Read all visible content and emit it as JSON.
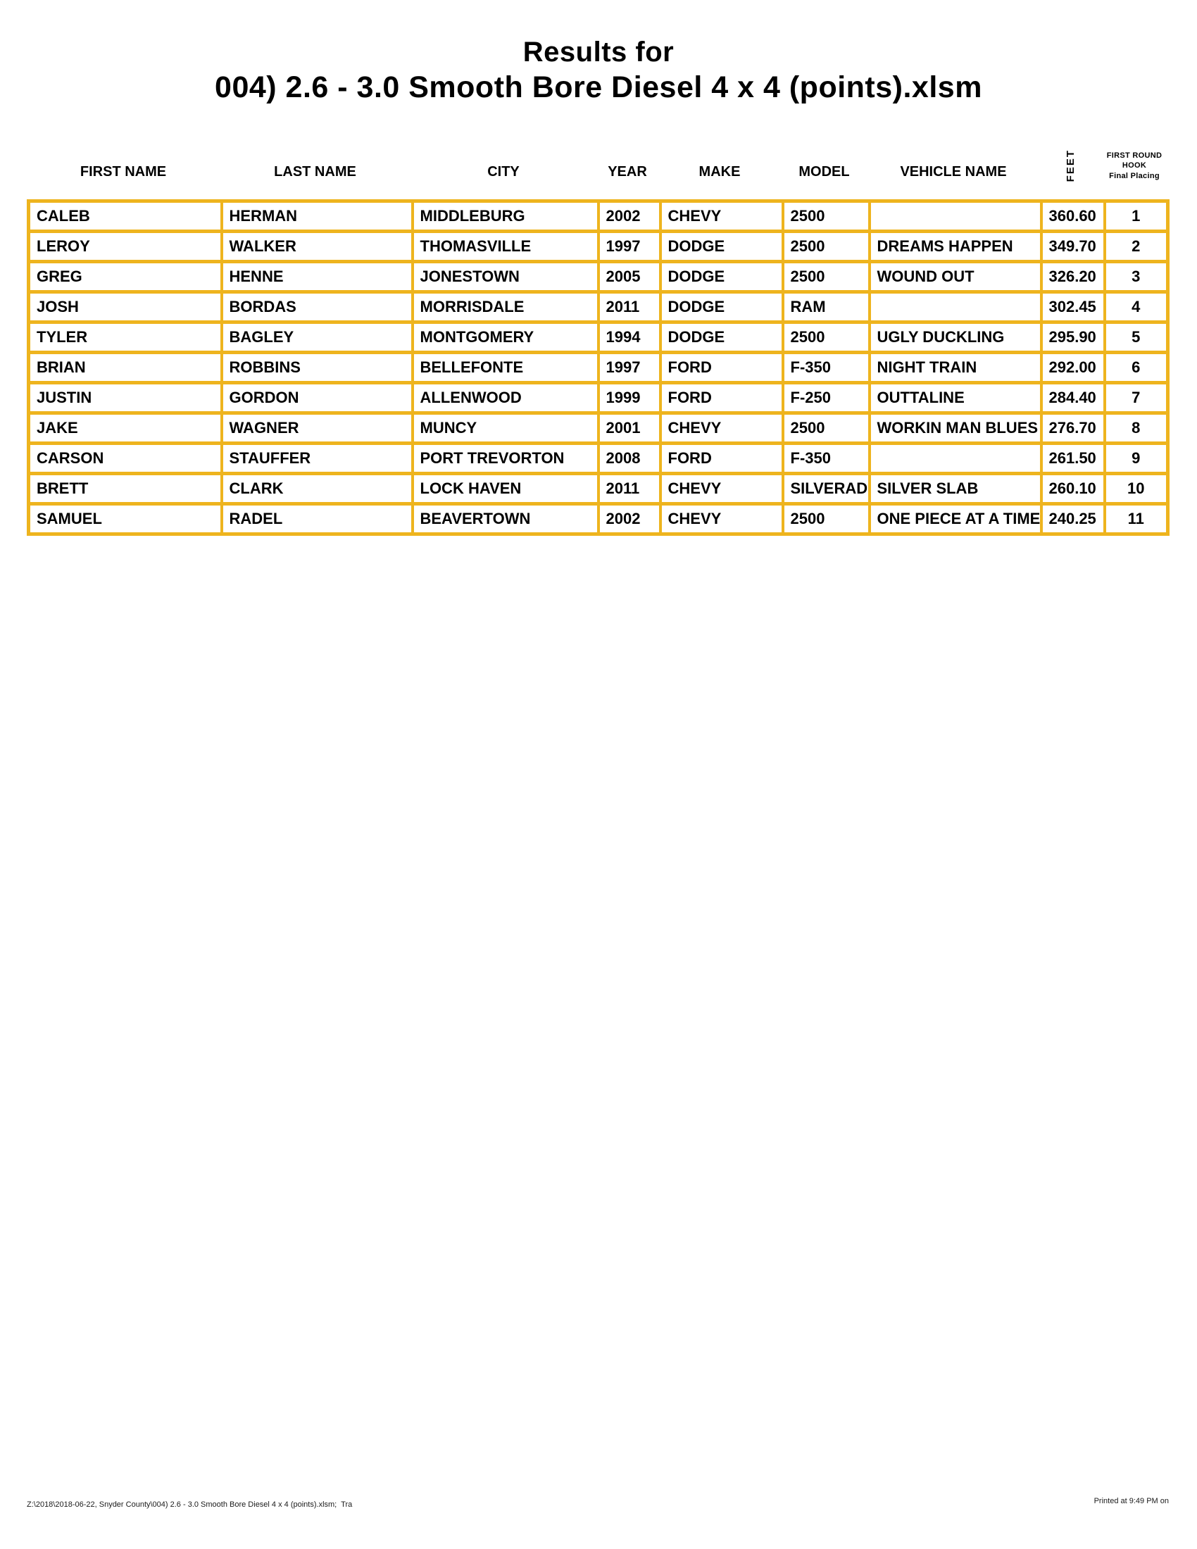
{
  "title": {
    "line1": "Results for",
    "line2": "004) 2.6 - 3.0 Smooth Bore Diesel 4 x 4 (points).xlsm"
  },
  "colors": {
    "grid": "#EEB41E",
    "text": "#000000",
    "background": "#FFFFFF"
  },
  "table": {
    "headers": [
      "FIRST NAME",
      "LAST NAME",
      "CITY",
      "YEAR",
      "MAKE",
      "MODEL",
      "VEHICLE NAME"
    ],
    "feet_header": "FEET",
    "placing_header": {
      "line1": "FIRST ROUND",
      "line2": "HOOK",
      "line3": "Final Placing"
    },
    "rows": [
      {
        "first_name": "CALEB",
        "last_name": "HERMAN",
        "city": "MIDDLEBURG",
        "year": "2002",
        "make": "CHEVY",
        "model": "2500",
        "vehicle_name": "",
        "feet": "360.60",
        "placing": "1"
      },
      {
        "first_name": "LEROY",
        "last_name": "WALKER",
        "city": "THOMASVILLE",
        "year": "1997",
        "make": "DODGE",
        "model": "2500",
        "vehicle_name": "DREAMS HAPPEN",
        "feet": "349.70",
        "placing": "2"
      },
      {
        "first_name": "GREG",
        "last_name": "HENNE",
        "city": "JONESTOWN",
        "year": "2005",
        "make": "DODGE",
        "model": "2500",
        "vehicle_name": "WOUND OUT",
        "feet": "326.20",
        "placing": "3"
      },
      {
        "first_name": "JOSH",
        "last_name": "BORDAS",
        "city": "MORRISDALE",
        "year": "2011",
        "make": "DODGE",
        "model": "RAM",
        "vehicle_name": "",
        "feet": "302.45",
        "placing": "4"
      },
      {
        "first_name": "TYLER",
        "last_name": "BAGLEY",
        "city": "MONTGOMERY",
        "year": "1994",
        "make": "DODGE",
        "model": "2500",
        "vehicle_name": "UGLY DUCKLING",
        "feet": "295.90",
        "placing": "5"
      },
      {
        "first_name": "BRIAN",
        "last_name": "ROBBINS",
        "city": "BELLEFONTE",
        "year": "1997",
        "make": "FORD",
        "model": "F-350",
        "vehicle_name": "NIGHT TRAIN",
        "feet": "292.00",
        "placing": "6"
      },
      {
        "first_name": "JUSTIN",
        "last_name": "GORDON",
        "city": "ALLENWOOD",
        "year": "1999",
        "make": "FORD",
        "model": "F-250",
        "vehicle_name": "OUTTALINE",
        "feet": "284.40",
        "placing": "7"
      },
      {
        "first_name": "JAKE",
        "last_name": "WAGNER",
        "city": "MUNCY",
        "year": "2001",
        "make": "CHEVY",
        "model": "2500",
        "vehicle_name": "WORKIN MAN BLUES",
        "feet": "276.70",
        "placing": "8"
      },
      {
        "first_name": "CARSON",
        "last_name": "STAUFFER",
        "city": "PORT TREVORTON",
        "year": "2008",
        "make": "FORD",
        "model": "F-350",
        "vehicle_name": "",
        "feet": "261.50",
        "placing": "9"
      },
      {
        "first_name": "BRETT",
        "last_name": "CLARK",
        "city": "LOCK HAVEN",
        "year": "2011",
        "make": "CHEVY",
        "model": "SILVERADO",
        "vehicle_name": "SILVER SLAB",
        "feet": "260.10",
        "placing": "10"
      },
      {
        "first_name": "SAMUEL",
        "last_name": "RADEL",
        "city": "BEAVERTOWN",
        "year": "2002",
        "make": "CHEVY",
        "model": "2500",
        "vehicle_name": "ONE PIECE AT A TIME",
        "feet": "240.25",
        "placing": "11"
      }
    ]
  },
  "footer": {
    "left": "Z:\\2018\\2018-06-22, Snyder County\\004) 2.6 - 3.0 Smooth Bore Diesel 4 x 4 (points).xlsm;  Tra",
    "right": "Printed at 9:49 PM on"
  }
}
